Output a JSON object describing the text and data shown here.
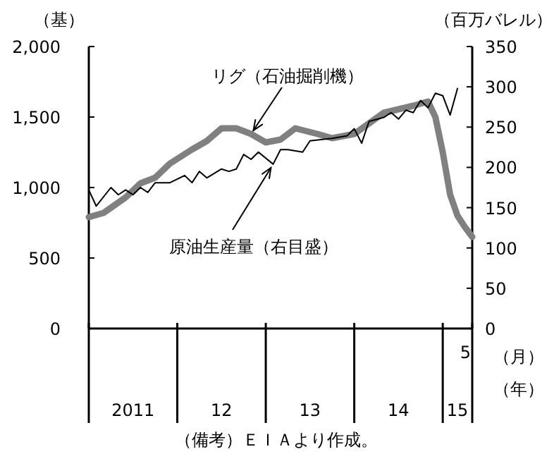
{
  "chart_data": {
    "type": "line",
    "ylabel": "（基）",
    "y2label": "（百万バレル）",
    "xlim": [
      "2011-01",
      "2015-05"
    ],
    "xticks": [
      {
        "value": "2011-01",
        "label": null
      },
      {
        "value": "2011-07",
        "label": "2011"
      },
      {
        "value": "2012-01",
        "label": null
      },
      {
        "value": "2012-07",
        "label": "12"
      },
      {
        "value": "2013-01",
        "label": null
      },
      {
        "value": "2013-07",
        "label": "13"
      },
      {
        "value": "2014-01",
        "label": null
      },
      {
        "value": "2014-07",
        "label": "14"
      },
      {
        "value": "2015-01",
        "label": null
      },
      {
        "value": "2015-03",
        "label": "15"
      },
      {
        "value": "2015-05",
        "label": null
      }
    ],
    "ylim": [
      0,
      2000
    ],
    "yticks": [
      0,
      500,
      {
        "value": 1000,
        "label": "1,000"
      },
      {
        "value": 1500,
        "label": "1,500"
      },
      {
        "value": 2000,
        "label": "2,000"
      }
    ],
    "y2lim": [
      0,
      350
    ],
    "y2ticks": [
      0,
      50,
      100,
      150,
      200,
      250,
      300,
      350
    ],
    "grid": false,
    "marker": "none",
    "line_style": "solid",
    "series": [
      {
        "name": "リグ（石油掘削機）",
        "color": "#808080",
        "x": [
          "2011-01",
          "2011-03",
          "2011-06",
          "2011-08",
          "2011-10",
          "2011-12",
          "2012-03",
          "2012-05",
          "2012-07",
          "2012-09",
          "2012-11",
          "2013-01",
          "2013-03",
          "2013-05",
          "2013-08",
          "2013-10",
          "2014-01",
          "2014-05",
          "2014-09",
          "2014-11",
          "2014-12",
          "2015-01",
          "2015-02",
          "2015-03",
          "2015-04",
          "2015-05"
        ],
        "values": [
          790,
          820,
          930,
          1030,
          1070,
          1170,
          1270,
          1330,
          1420,
          1420,
          1380,
          1320,
          1340,
          1420,
          1380,
          1350,
          1380,
          1530,
          1580,
          1610,
          1500,
          1250,
          950,
          800,
          720,
          650
        ]
      },
      {
        "name": "原油生産量（右目盛）",
        "color": "#000000",
        "axis": "y2",
        "x": [
          "2011-01",
          "2011-02",
          "2011-04",
          "2011-05",
          "2011-06",
          "2011-07",
          "2011-08",
          "2011-09",
          "2011-10",
          "2011-12",
          "2012-02",
          "2012-03",
          "2012-04",
          "2012-05",
          "2012-07",
          "2012-08",
          "2012-09",
          "2012-10",
          "2012-11",
          "2012-12",
          "2013-02",
          "2013-03",
          "2013-04",
          "2013-06",
          "2013-07",
          "2013-10",
          "2013-12",
          "2014-01",
          "2014-02",
          "2014-03",
          "2014-05",
          "2014-06",
          "2014-07",
          "2014-08",
          "2014-09",
          "2014-10",
          "2014-11",
          "2014-12",
          "2015-01",
          "2015-02",
          "2015-03"
        ],
        "values": [
          172,
          152,
          175,
          166,
          172,
          166,
          175,
          169,
          181,
          181,
          190,
          181,
          195,
          187,
          198,
          195,
          198,
          216,
          210,
          219,
          204,
          222,
          222,
          219,
          233,
          236,
          239,
          248,
          230,
          257,
          262,
          268,
          260,
          271,
          268,
          283,
          274,
          292,
          289,
          265,
          298
        ]
      }
    ],
    "annotations": [
      "5",
      "（月）",
      "（年）",
      "（備考）ＥＩＡより作成。"
    ]
  }
}
